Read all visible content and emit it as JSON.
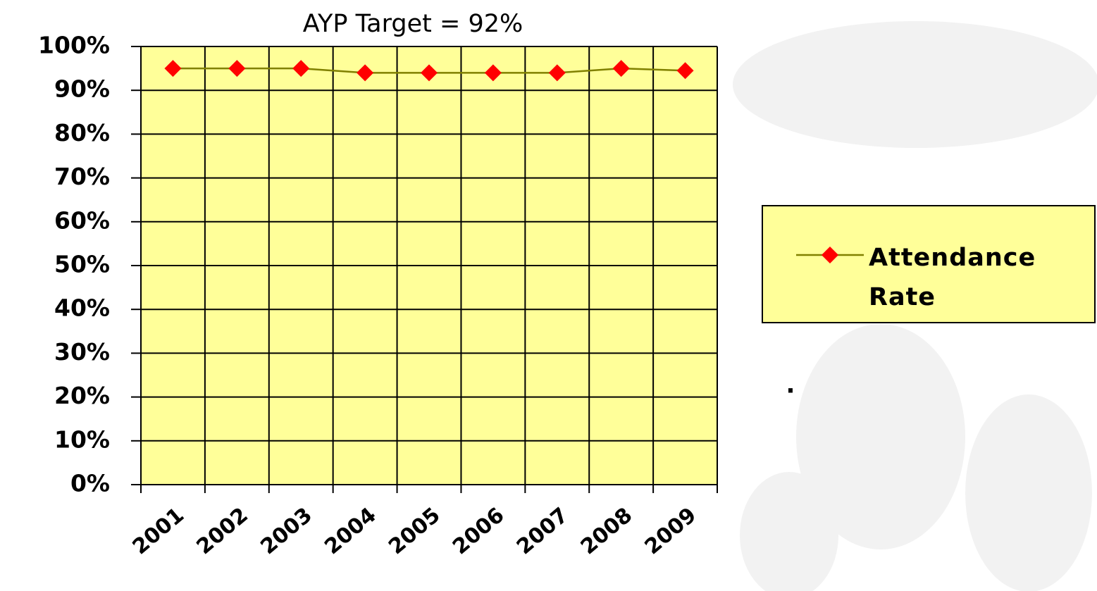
{
  "chart_data": {
    "type": "line",
    "title": "AYP Target = 92%",
    "annotation": ".",
    "categories": [
      "2001",
      "2002",
      "2003",
      "2004",
      "2005",
      "2006",
      "2007",
      "2008",
      "2009"
    ],
    "series": [
      {
        "name": "Attendance Rate",
        "color": "#808000",
        "marker_color": "#ff0000",
        "values": [
          95,
          95,
          95,
          94,
          94,
          94,
          94,
          95,
          94.5
        ]
      }
    ],
    "ylim": [
      0,
      100
    ],
    "yticks": [
      {
        "value": 0,
        "label": "0%"
      },
      {
        "value": 10,
        "label": "10%"
      },
      {
        "value": 20,
        "label": "20%"
      },
      {
        "value": 30,
        "label": "30%"
      },
      {
        "value": 40,
        "label": "40%"
      },
      {
        "value": 50,
        "label": "50%"
      },
      {
        "value": 60,
        "label": "60%"
      },
      {
        "value": 70,
        "label": "70%"
      },
      {
        "value": 80,
        "label": "80%"
      },
      {
        "value": 90,
        "label": "90%"
      },
      {
        "value": 100,
        "label": "100%"
      }
    ],
    "grid": true,
    "plot_background": "#ffff99",
    "legend": "right"
  }
}
